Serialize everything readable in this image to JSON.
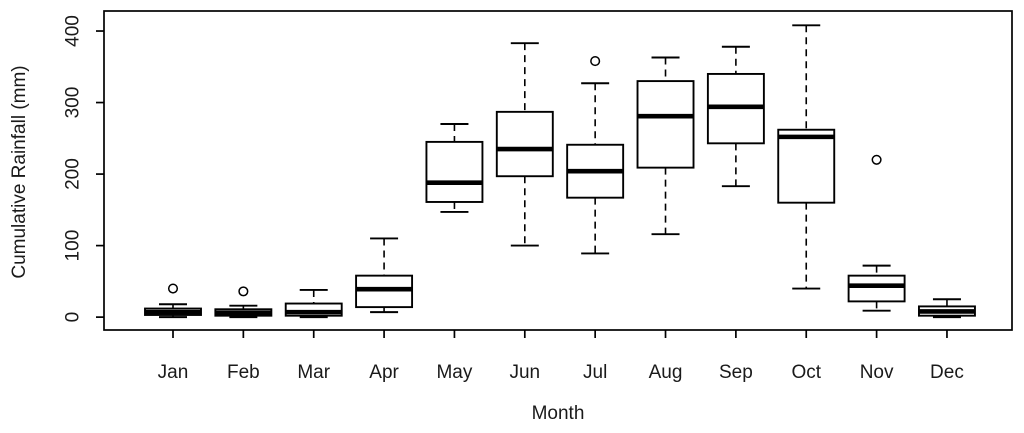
{
  "chart_data": {
    "type": "boxplot",
    "title": "",
    "xlabel": "Month",
    "ylabel": "Cumulative Rainfall (mm)",
    "categories": [
      "Jan",
      "Feb",
      "Mar",
      "Apr",
      "May",
      "Jun",
      "Jul",
      "Aug",
      "Sep",
      "Oct",
      "Nov",
      "Dec"
    ],
    "y_ticks": [
      0,
      100,
      200,
      300,
      400
    ],
    "ylim": [
      -18,
      428
    ],
    "grid": false,
    "legend": "none",
    "boxes": [
      {
        "month": "Jan",
        "whisker_low": 0,
        "q1": 3,
        "median": 7,
        "q3": 12,
        "whisker_high": 18,
        "outliers": [
          40
        ]
      },
      {
        "month": "Feb",
        "whisker_low": 0,
        "q1": 2,
        "median": 6,
        "q3": 11,
        "whisker_high": 16,
        "outliers": [
          36
        ]
      },
      {
        "month": "Mar",
        "whisker_low": 0,
        "q1": 2,
        "median": 7,
        "q3": 19,
        "whisker_high": 38,
        "outliers": []
      },
      {
        "month": "Apr",
        "whisker_low": 7,
        "q1": 14,
        "median": 39,
        "q3": 58,
        "whisker_high": 110,
        "outliers": []
      },
      {
        "month": "May",
        "whisker_low": 147,
        "q1": 161,
        "median": 188,
        "q3": 245,
        "whisker_high": 270,
        "outliers": []
      },
      {
        "month": "Jun",
        "whisker_low": 100,
        "q1": 197,
        "median": 235,
        "q3": 287,
        "whisker_high": 383,
        "outliers": []
      },
      {
        "month": "Jul",
        "whisker_low": 89,
        "q1": 167,
        "median": 204,
        "q3": 241,
        "whisker_high": 327,
        "outliers": [
          358
        ]
      },
      {
        "month": "Aug",
        "whisker_low": 116,
        "q1": 209,
        "median": 281,
        "q3": 330,
        "whisker_high": 363,
        "outliers": []
      },
      {
        "month": "Sep",
        "whisker_low": 183,
        "q1": 243,
        "median": 294,
        "q3": 340,
        "whisker_high": 378,
        "outliers": []
      },
      {
        "month": "Oct",
        "whisker_low": 40,
        "q1": 160,
        "median": 252,
        "q3": 262,
        "whisker_high": 408,
        "outliers": []
      },
      {
        "month": "Nov",
        "whisker_low": 9,
        "q1": 22,
        "median": 44,
        "q3": 58,
        "whisker_high": 72,
        "outliers": [
          220
        ]
      },
      {
        "month": "Dec",
        "whisker_low": 0,
        "q1": 2,
        "median": 8,
        "q3": 15,
        "whisker_high": 25,
        "outliers": []
      }
    ],
    "colors": {
      "line": "#000000",
      "text": "#1a1a1a",
      "background": "#ffffff",
      "box_fill": "#ffffff"
    }
  }
}
